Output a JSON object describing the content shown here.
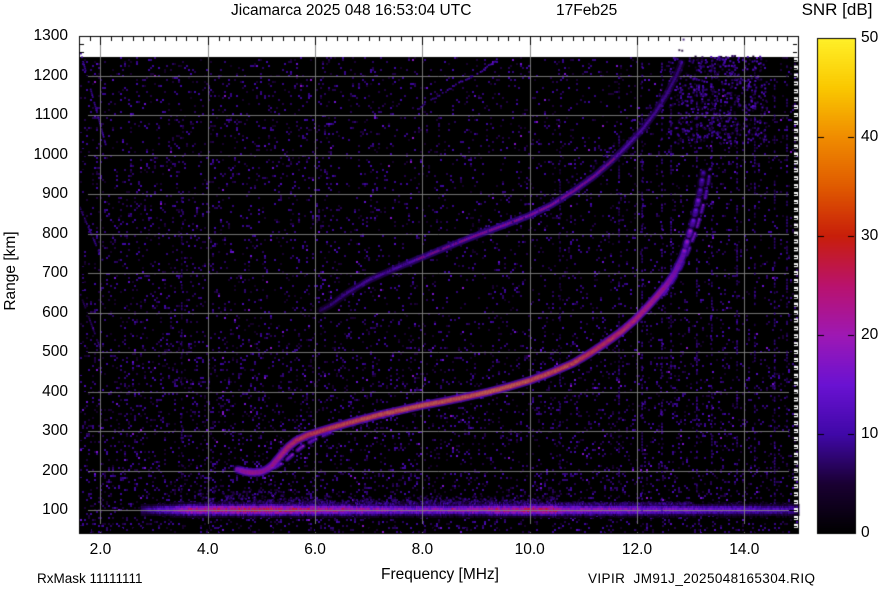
{
  "title": {
    "main": "Jicamarca 2025 048 16:53:04 UTC",
    "date": "17Feb25"
  },
  "annotations": {
    "rx_mask": "RxMask 11111111",
    "file_id": "VIPIR  JM91J_2025048165304.RIQ"
  },
  "colorbar": {
    "title": "SNR [dB]",
    "min": 0,
    "max": 50,
    "ticks": [
      0,
      10,
      20,
      30,
      40,
      50
    ],
    "palette_stops": [
      [
        0.0,
        0,
        0,
        0
      ],
      [
        0.1,
        26,
        0,
        51
      ],
      [
        0.2,
        64,
        8,
        168
      ],
      [
        0.3,
        106,
        18,
        210
      ],
      [
        0.4,
        158,
        24,
        180
      ],
      [
        0.5,
        185,
        18,
        110
      ],
      [
        0.6,
        200,
        30,
        10
      ],
      [
        0.7,
        224,
        90,
        0
      ],
      [
        0.8,
        240,
        140,
        0
      ],
      [
        0.9,
        250,
        200,
        0
      ],
      [
        1.0,
        255,
        240,
        40
      ]
    ]
  },
  "chart_data": {
    "type": "heatmap",
    "title": "Jicamarca 2025 048 16:53:04 UTC 17Feb25",
    "xlabel": "Frequency [MHz]",
    "ylabel": "Range [km]",
    "xlim": [
      1.6,
      15.0
    ],
    "ylim": [
      42,
      1300
    ],
    "grid": true,
    "grid_color": "#7f7f7f",
    "background_color": "#000000",
    "data_top_km": 1245,
    "x_ticks": [
      2,
      4,
      6,
      8,
      10,
      12,
      14
    ],
    "x_tick_labels": [
      "2.0",
      "4.0",
      "6.0",
      "8.0",
      "10.0",
      "12.0",
      "14.0"
    ],
    "x_minor_step_mhz": 0.2,
    "y_ticks": [
      100,
      200,
      300,
      400,
      500,
      600,
      700,
      800,
      900,
      1000,
      1100,
      1200,
      1300
    ],
    "y_tick_labels": [
      "100",
      "200",
      "300",
      "400",
      "500",
      "600",
      "700",
      "800",
      "900",
      "1000",
      "1100",
      "1200",
      "1300"
    ],
    "y_minor_step_km": 20,
    "f_layer_o_trace": {
      "name": "F-region O-mode echo",
      "points_f_km_db": [
        [
          4.55,
          203,
          24
        ],
        [
          4.7,
          197,
          30
        ],
        [
          4.85,
          195,
          33
        ],
        [
          5.0,
          197,
          30
        ],
        [
          5.1,
          203,
          28
        ],
        [
          5.2,
          213,
          30
        ],
        [
          5.35,
          237,
          34
        ],
        [
          5.5,
          260,
          38
        ],
        [
          5.65,
          276,
          40
        ],
        [
          5.85,
          289,
          42
        ],
        [
          6.1,
          300,
          42
        ],
        [
          6.4,
          312,
          44
        ],
        [
          6.8,
          327,
          44
        ],
        [
          7.2,
          341,
          46
        ],
        [
          7.6,
          353,
          46
        ],
        [
          8.0,
          365,
          47
        ],
        [
          8.4,
          375,
          46
        ],
        [
          8.8,
          386,
          46
        ],
        [
          9.2,
          398,
          47
        ],
        [
          9.6,
          412,
          48
        ],
        [
          10.0,
          428,
          46
        ],
        [
          10.4,
          448,
          45
        ],
        [
          10.8,
          471,
          44
        ],
        [
          11.1,
          495,
          42
        ],
        [
          11.4,
          522,
          40
        ],
        [
          11.7,
          551,
          38
        ],
        [
          11.95,
          580,
          36
        ],
        [
          12.15,
          608,
          34
        ],
        [
          12.35,
          638,
          32
        ],
        [
          12.55,
          670,
          29
        ],
        [
          12.7,
          700,
          25
        ],
        [
          12.85,
          742,
          21
        ],
        [
          12.95,
          788,
          18
        ],
        [
          13.05,
          833,
          16
        ],
        [
          13.13,
          878,
          15
        ],
        [
          13.19,
          918,
          13
        ],
        [
          13.24,
          958,
          11
        ]
      ]
    },
    "f_layer_x_trace_foot": {
      "name": "X-mode branch near trace foot",
      "points_f_km_db": [
        [
          5.25,
          207,
          15
        ],
        [
          5.45,
          225,
          17
        ],
        [
          5.6,
          243,
          19
        ],
        [
          5.75,
          260,
          19
        ],
        [
          5.95,
          276,
          17
        ],
        [
          6.15,
          288,
          15
        ],
        [
          6.35,
          300,
          13
        ]
      ]
    },
    "f_layer_x_trace_cusp": {
      "name": "X-mode branch near critical frequency",
      "points_f_km_db": [
        [
          12.5,
          645,
          15
        ],
        [
          12.65,
          675,
          16
        ],
        [
          12.8,
          710,
          17
        ],
        [
          12.95,
          755,
          17
        ],
        [
          13.08,
          800,
          17
        ],
        [
          13.18,
          845,
          16
        ],
        [
          13.27,
          890,
          15
        ],
        [
          13.33,
          930,
          13
        ],
        [
          13.37,
          968,
          11
        ]
      ]
    },
    "second_hop_trace": {
      "name": "Second-hop F echo (diffuse)",
      "points_f_km_db": [
        [
          6.1,
          605,
          9
        ],
        [
          6.3,
          620,
          10
        ],
        [
          6.6,
          650,
          12
        ],
        [
          7.0,
          682,
          13
        ],
        [
          7.5,
          712,
          14
        ],
        [
          8.0,
          740,
          16
        ],
        [
          8.5,
          768,
          17
        ],
        [
          9.0,
          795,
          18
        ],
        [
          9.5,
          820,
          19
        ],
        [
          10.0,
          846,
          19
        ],
        [
          10.4,
          872,
          19
        ],
        [
          10.8,
          906,
          18
        ],
        [
          11.2,
          945,
          17
        ],
        [
          11.5,
          980,
          16
        ],
        [
          11.8,
          1020,
          15
        ],
        [
          12.1,
          1064,
          14
        ],
        [
          12.35,
          1108,
          13
        ],
        [
          12.55,
          1152,
          12
        ],
        [
          12.72,
          1196,
          11
        ],
        [
          12.85,
          1238,
          10
        ]
      ],
      "red_core_f_range": [
        7.9,
        11.6
      ],
      "spread_above_km_max": 70
    },
    "oblique_streak": {
      "name": "Faint oblique streak (multiple echo)",
      "points_f_km_db": [
        [
          7.9,
          1118,
          7
        ],
        [
          8.3,
          1152,
          8
        ],
        [
          8.7,
          1185,
          10
        ],
        [
          9.1,
          1215,
          11
        ],
        [
          9.4,
          1244,
          12
        ]
      ]
    },
    "left_edge_streaks": [
      {
        "from_f_km": [
          1.62,
          1258
        ],
        "to_f_km": [
          2.08,
          1028
        ],
        "db": 9
      },
      {
        "from_f_km": [
          1.6,
          868
        ],
        "to_f_km": [
          2.02,
          736
        ],
        "db": 8
      },
      {
        "from_f_km": [
          1.6,
          652
        ],
        "to_f_km": [
          1.98,
          512
        ],
        "db": 7
      }
    ],
    "e_region_band": {
      "name": "E-region / ground-clutter band",
      "center_km": 103,
      "f_start": 2.75,
      "f_end": 15.0,
      "peak_db": 24,
      "diffuse_top_regions": [
        {
          "f0": 3.8,
          "f1": 5.4,
          "top_km": 172
        },
        {
          "f0": 5.4,
          "f1": 10.5,
          "top_km": 140
        },
        {
          "f0": 10.5,
          "f1": 13.0,
          "top_km": 124
        }
      ]
    },
    "rfi_lines": [
      {
        "f": 3.5,
        "db": 7,
        "r0": 120,
        "r1": 900
      },
      {
        "f": 10.55,
        "db": 7,
        "r0": 150,
        "r1": 1100
      },
      {
        "f": 11.65,
        "db": 8,
        "r0": 120,
        "r1": 1200
      },
      {
        "f": 12.08,
        "db": 9,
        "r0": 100,
        "r1": 1240
      },
      {
        "f": 12.45,
        "db": 10,
        "r0": 100,
        "r1": 1240
      },
      {
        "f": 12.62,
        "db": 8,
        "r0": 400,
        "r1": 1100
      },
      {
        "f": 13.1,
        "db": 9,
        "r0": 150,
        "r1": 1200
      },
      {
        "f": 13.38,
        "db": 8,
        "r0": 200,
        "r1": 1240
      },
      {
        "f": 13.85,
        "db": 9,
        "r0": 120,
        "r1": 1100
      },
      {
        "f": 14.18,
        "db": 8,
        "r0": 200,
        "r1": 1240
      },
      {
        "f": 14.55,
        "db": 9,
        "r0": 100,
        "r1": 1200
      },
      {
        "f": 14.78,
        "db": 8,
        "r0": 300,
        "r1": 1240
      }
    ],
    "diffuse_patch_top_right": {
      "f0": 12.55,
      "f1": 14.4,
      "r0": 1030,
      "r1": 1252,
      "db": 10
    },
    "noise": {
      "speckle_density": 0.075,
      "low_altitude_boost": 0.065,
      "bright_dot_fraction": 0.04
    }
  }
}
